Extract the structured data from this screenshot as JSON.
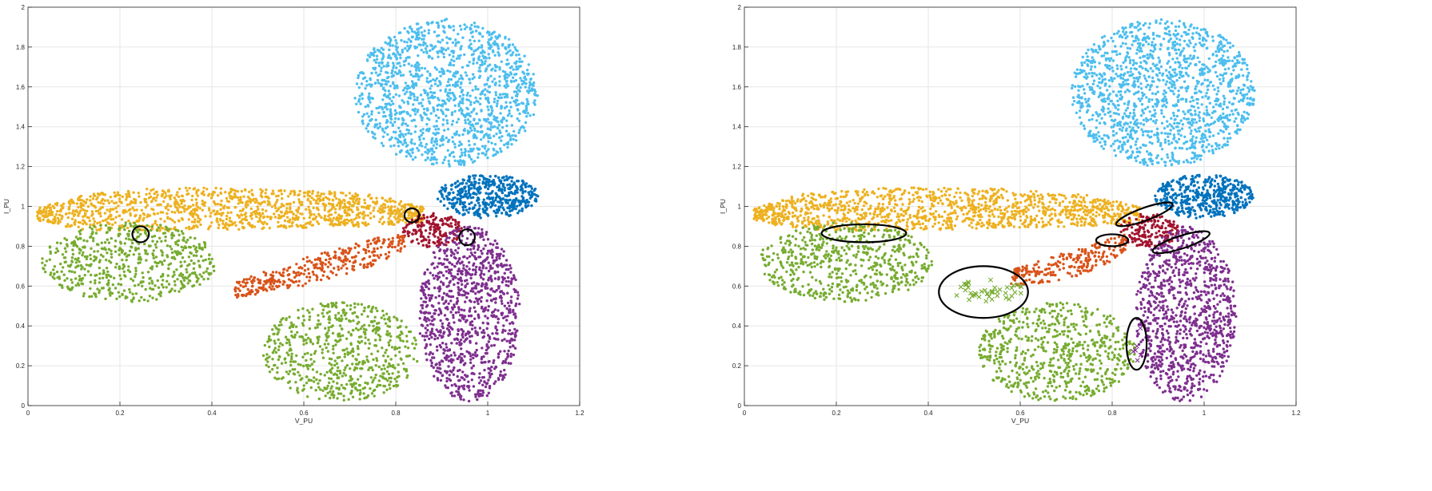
{
  "colors": {
    "sky": "#4DBEEE",
    "blue": "#0072BD",
    "yellow": "#EDB120",
    "red": "#A2142F",
    "orange": "#D95319",
    "green": "#77AC30",
    "purple": "#7E2F8E",
    "ellipse": "#000000",
    "grid": "#e6e6e6",
    "axis": "#262626"
  },
  "chart_data": [
    {
      "type": "scatter",
      "xlabel": "V_PU",
      "ylabel": "I_PU",
      "xlim": [
        0,
        1.2
      ],
      "ylim": [
        0,
        2
      ],
      "xticks": [
        "0",
        "0.2",
        "0.4",
        "0.6",
        "0.8",
        "1",
        "1.2"
      ],
      "yticks": [
        "0",
        "0.2",
        "0.4",
        "0.6",
        "0.8",
        "1",
        "1.2",
        "1.4",
        "1.6",
        "1.8",
        "2"
      ],
      "grid": true,
      "series": [
        {
          "color": "sky",
          "shape": "ellipse",
          "cx": 0.91,
          "cy": 1.57,
          "rx": 0.2,
          "ry": 0.37,
          "count": 1400
        },
        {
          "color": "blue",
          "shape": "ellipse",
          "cx": 1.0,
          "cy": 1.05,
          "rx": 0.11,
          "ry": 0.11,
          "count": 450
        },
        {
          "color": "yellow",
          "shape": "band",
          "x": [
            0.02,
            0.12,
            0.3,
            0.55,
            0.75,
            0.86
          ],
          "center": [
            0.96,
            0.97,
            0.985,
            0.99,
            0.98,
            0.96
          ],
          "half_width": [
            0.03,
            0.09,
            0.11,
            0.1,
            0.08,
            0.04
          ],
          "count": 1300
        },
        {
          "color": "red",
          "shape": "ellipse",
          "cx": 0.88,
          "cy": 0.88,
          "rx": 0.065,
          "ry": 0.085,
          "count": 180
        },
        {
          "color": "orange",
          "shape": "band",
          "x": [
            0.45,
            0.6,
            0.75,
            0.82
          ],
          "center": [
            0.58,
            0.67,
            0.77,
            0.82
          ],
          "half_width": [
            0.04,
            0.07,
            0.07,
            0.04
          ],
          "count": 350
        },
        {
          "color": "green",
          "shape": "ellipse",
          "cx": 0.22,
          "cy": 0.72,
          "rx": 0.19,
          "ry": 0.2,
          "count": 600
        },
        {
          "color": "green",
          "shape": "ellipse",
          "cx": 0.68,
          "cy": 0.27,
          "rx": 0.17,
          "ry": 0.25,
          "count": 650
        },
        {
          "color": "purple",
          "shape": "ellipse",
          "cx": 0.96,
          "cy": 0.46,
          "rx": 0.11,
          "ry": 0.44,
          "count": 1000
        }
      ],
      "annotations": [
        {
          "type": "ellipse",
          "cx": 0.245,
          "cy": 0.86,
          "rx": 0.018,
          "ry": 0.04
        },
        {
          "type": "ellipse",
          "cx": 0.835,
          "cy": 0.955,
          "rx": 0.016,
          "ry": 0.035
        },
        {
          "type": "ellipse",
          "cx": 0.955,
          "cy": 0.845,
          "rx": 0.017,
          "ry": 0.04
        }
      ]
    },
    {
      "type": "scatter",
      "xlabel": "V_PU",
      "ylabel": "I_PU",
      "xlim": [
        0,
        1.2
      ],
      "ylim": [
        0,
        2
      ],
      "xticks": [
        "0",
        "0.2",
        "0.4",
        "0.6",
        "0.8",
        "1",
        "1.2"
      ],
      "yticks": [
        "0",
        "0.2",
        "0.4",
        "0.6",
        "0.8",
        "1",
        "1.2",
        "1.4",
        "1.6",
        "1.8",
        "2"
      ],
      "grid": true,
      "series": [
        {
          "color": "sky",
          "shape": "ellipse",
          "cx": 0.91,
          "cy": 1.57,
          "rx": 0.2,
          "ry": 0.37,
          "count": 1400
        },
        {
          "color": "blue",
          "shape": "ellipse",
          "cx": 1.0,
          "cy": 1.05,
          "rx": 0.11,
          "ry": 0.11,
          "count": 450
        },
        {
          "color": "yellow",
          "shape": "band",
          "x": [
            0.02,
            0.12,
            0.3,
            0.55,
            0.75,
            0.86
          ],
          "center": [
            0.96,
            0.97,
            0.985,
            0.99,
            0.98,
            0.96
          ],
          "half_width": [
            0.03,
            0.09,
            0.11,
            0.1,
            0.08,
            0.04
          ],
          "count": 1300
        },
        {
          "color": "red",
          "shape": "ellipse",
          "cx": 0.88,
          "cy": 0.88,
          "rx": 0.065,
          "ry": 0.085,
          "count": 180
        },
        {
          "color": "orange",
          "shape": "band",
          "x": [
            0.58,
            0.7,
            0.8,
            0.83
          ],
          "center": [
            0.64,
            0.7,
            0.78,
            0.82
          ],
          "half_width": [
            0.04,
            0.07,
            0.06,
            0.04
          ],
          "count": 250
        },
        {
          "color": "green",
          "shape": "ellipse",
          "cx": 0.22,
          "cy": 0.72,
          "rx": 0.19,
          "ry": 0.2,
          "count": 600
        },
        {
          "color": "green",
          "shape": "ellipse",
          "cx": 0.68,
          "cy": 0.27,
          "rx": 0.17,
          "ry": 0.25,
          "count": 650
        },
        {
          "color": "purple",
          "shape": "ellipse",
          "cx": 0.96,
          "cy": 0.46,
          "rx": 0.11,
          "ry": 0.44,
          "count": 1000
        },
        {
          "color": "green",
          "marker": "x",
          "shape": "ellipse",
          "cx": 0.53,
          "cy": 0.58,
          "rx": 0.08,
          "ry": 0.06,
          "count": 45
        },
        {
          "color": "purple",
          "marker": "x",
          "shape": "ellipse",
          "cx": 0.855,
          "cy": 0.31,
          "rx": 0.012,
          "ry": 0.1,
          "count": 6
        }
      ],
      "annotations": [
        {
          "type": "ellipse",
          "cx": 0.26,
          "cy": 0.865,
          "rx": 0.092,
          "ry": 0.045
        },
        {
          "type": "ellipse",
          "cx": 0.87,
          "cy": 0.96,
          "rx": 0.065,
          "ry": 0.032,
          "rotate": -20
        },
        {
          "type": "ellipse",
          "cx": 0.8,
          "cy": 0.83,
          "rx": 0.035,
          "ry": 0.03
        },
        {
          "type": "ellipse",
          "cx": 0.95,
          "cy": 0.82,
          "rx": 0.065,
          "ry": 0.032,
          "rotate": -18
        },
        {
          "type": "ellipse",
          "cx": 0.52,
          "cy": 0.57,
          "rx": 0.097,
          "ry": 0.13
        },
        {
          "type": "ellipse",
          "cx": 0.853,
          "cy": 0.31,
          "rx": 0.022,
          "ry": 0.13
        }
      ]
    }
  ]
}
